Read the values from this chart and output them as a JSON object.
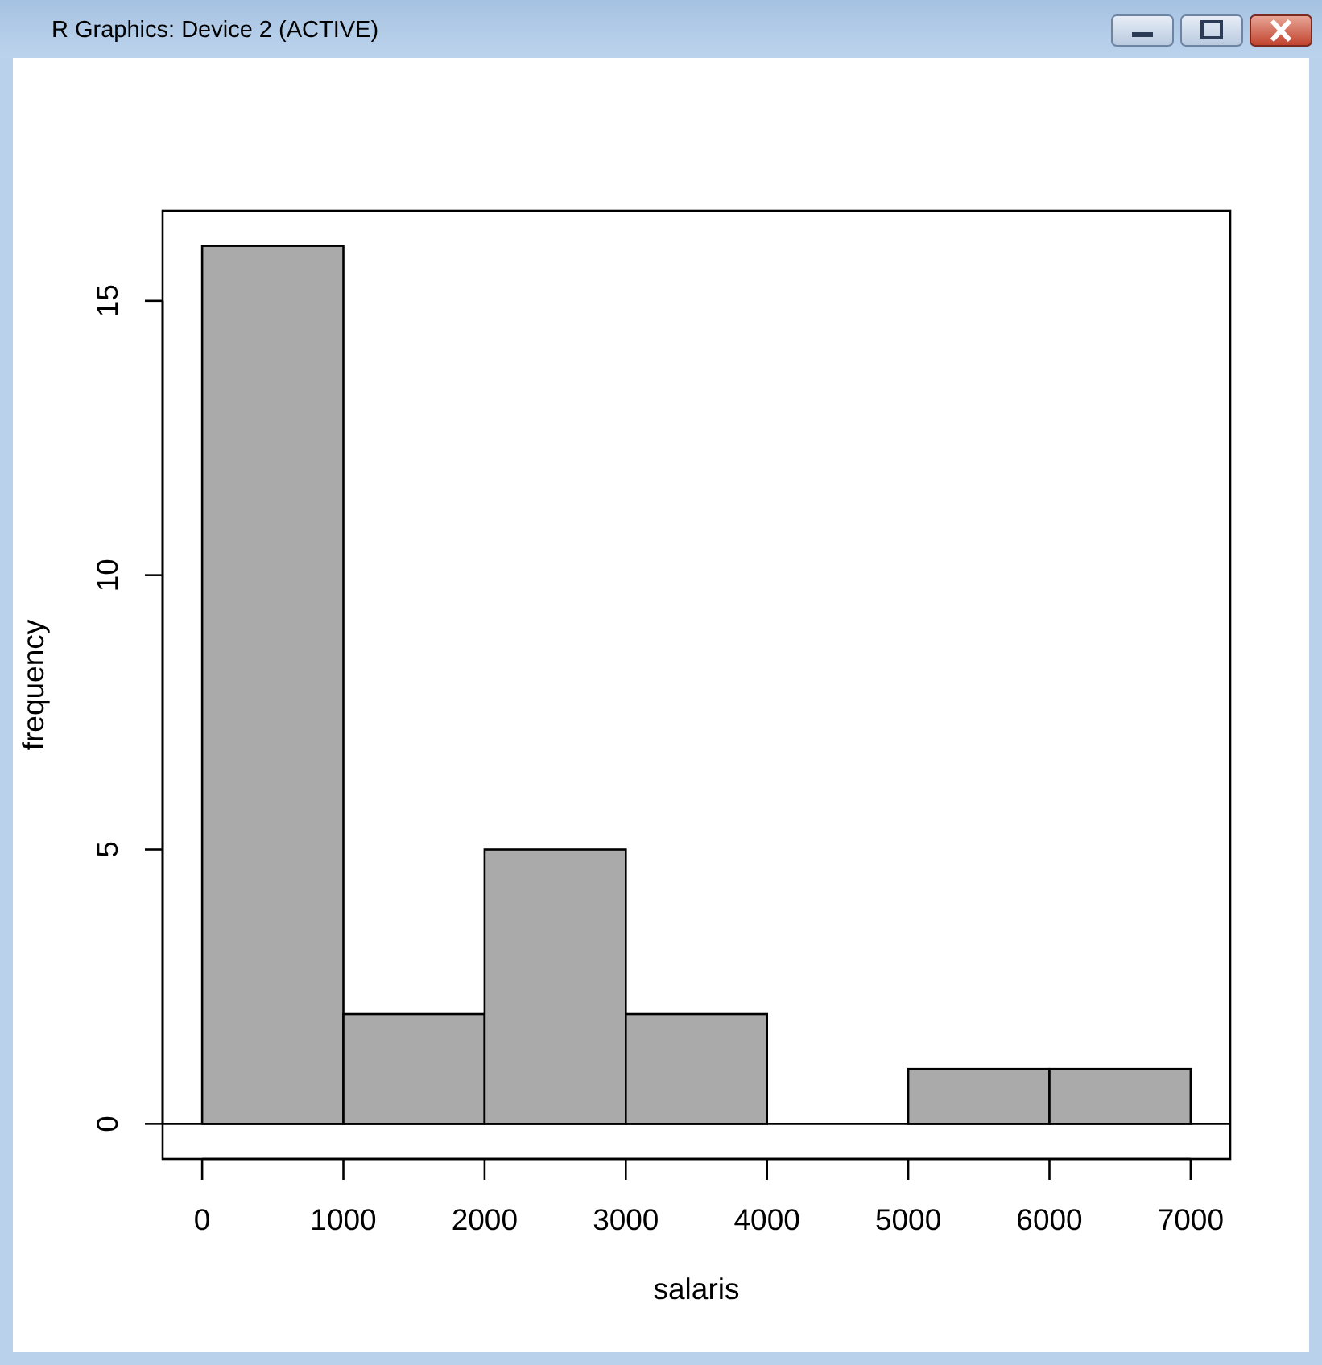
{
  "chart_data": {
    "type": "histogram",
    "xlabel": "salaris",
    "ylabel": "frequency",
    "annotations": [
      "R Graphics: Device 2 (ACTIVE)"
    ],
    "bins": [
      0,
      1000,
      2000,
      3000,
      4000,
      5000,
      6000,
      7000
    ],
    "values": [
      16,
      2,
      5,
      2,
      0,
      1,
      1
    ],
    "color": "#aaaaaa",
    "xlim": [
      -280,
      7280
    ],
    "ylim": [
      -0.64,
      16.64
    ],
    "xticks": [
      0,
      1000,
      2000,
      3000,
      4000,
      5000,
      6000,
      7000
    ],
    "yticks": [
      0,
      5,
      10,
      15
    ],
    "ref_lines": [
      {
        "axis": "y",
        "value": 0
      }
    ]
  }
}
